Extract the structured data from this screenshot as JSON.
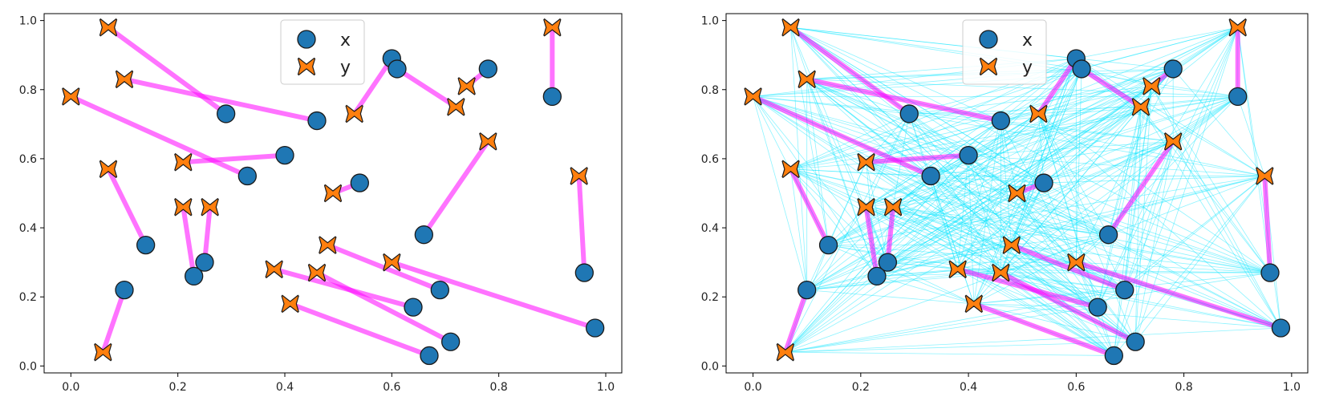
{
  "chart_data": [
    {
      "type": "scatter",
      "panel": "left",
      "xlim": [
        -0.05,
        1.03
      ],
      "ylim": [
        -0.02,
        1.02
      ],
      "xticks": [
        "0.0",
        "0.2",
        "0.4",
        "0.6",
        "0.8",
        "1.0"
      ],
      "yticks": [
        "0.0",
        "0.2",
        "0.4",
        "0.6",
        "0.8",
        "1.0"
      ],
      "legend": {
        "placement": "top-center",
        "entries": [
          "x",
          "y"
        ]
      },
      "series": [
        {
          "name": "x",
          "marker": "circle",
          "color": "#1f77b4",
          "points": [
            [
              0.29,
              0.73
            ],
            [
              0.46,
              0.71
            ],
            [
              0.4,
              0.61
            ],
            [
              0.33,
              0.55
            ],
            [
              0.54,
              0.53
            ],
            [
              0.14,
              0.35
            ],
            [
              0.25,
              0.3
            ],
            [
              0.23,
              0.26
            ],
            [
              0.1,
              0.22
            ],
            [
              0.6,
              0.89
            ],
            [
              0.61,
              0.86
            ],
            [
              0.78,
              0.86
            ],
            [
              0.9,
              0.78
            ],
            [
              0.66,
              0.38
            ],
            [
              0.96,
              0.27
            ],
            [
              0.98,
              0.11
            ],
            [
              0.69,
              0.22
            ],
            [
              0.64,
              0.17
            ],
            [
              0.71,
              0.07
            ],
            [
              0.67,
              0.03
            ]
          ]
        },
        {
          "name": "y",
          "marker": "cross",
          "color": "#ff7f0e",
          "points": [
            [
              0.07,
              0.98
            ],
            [
              0.1,
              0.83
            ],
            [
              0.0,
              0.78
            ],
            [
              0.21,
              0.59
            ],
            [
              0.07,
              0.57
            ],
            [
              0.21,
              0.46
            ],
            [
              0.26,
              0.46
            ],
            [
              0.06,
              0.04
            ],
            [
              0.53,
              0.73
            ],
            [
              0.74,
              0.81
            ],
            [
              0.72,
              0.75
            ],
            [
              0.9,
              0.98
            ],
            [
              0.78,
              0.65
            ],
            [
              0.95,
              0.55
            ],
            [
              0.49,
              0.5
            ],
            [
              0.48,
              0.35
            ],
            [
              0.6,
              0.3
            ],
            [
              0.38,
              0.28
            ],
            [
              0.46,
              0.27
            ],
            [
              0.41,
              0.18
            ]
          ]
        }
      ],
      "matching_color": "#ff00ff",
      "matching": [
        [
          0,
          0
        ],
        [
          1,
          1
        ],
        [
          2,
          3
        ],
        [
          3,
          2
        ],
        [
          4,
          14
        ],
        [
          5,
          4
        ],
        [
          6,
          6
        ],
        [
          7,
          5
        ],
        [
          8,
          7
        ],
        [
          9,
          8
        ],
        [
          10,
          10
        ],
        [
          11,
          9
        ],
        [
          12,
          11
        ],
        [
          13,
          12
        ],
        [
          14,
          13
        ],
        [
          15,
          16
        ],
        [
          16,
          15
        ],
        [
          17,
          17
        ],
        [
          18,
          18
        ],
        [
          19,
          19
        ]
      ]
    },
    {
      "type": "scatter",
      "panel": "right",
      "xlim": [
        -0.05,
        1.03
      ],
      "ylim": [
        -0.02,
        1.02
      ],
      "xticks": [
        "0.0",
        "0.2",
        "0.4",
        "0.6",
        "0.8",
        "1.0"
      ],
      "yticks": [
        "0.0",
        "0.2",
        "0.4",
        "0.6",
        "0.8",
        "1.0"
      ],
      "legend": {
        "placement": "top-center",
        "entries": [
          "x",
          "y"
        ]
      },
      "series": [
        {
          "name": "x",
          "marker": "circle",
          "color": "#1f77b4"
        },
        {
          "name": "y",
          "marker": "cross",
          "color": "#ff7f0e"
        }
      ],
      "all_pairs_edges": true,
      "edge_color": "#00e5ff",
      "matching_color": "#ff00ff"
    }
  ]
}
